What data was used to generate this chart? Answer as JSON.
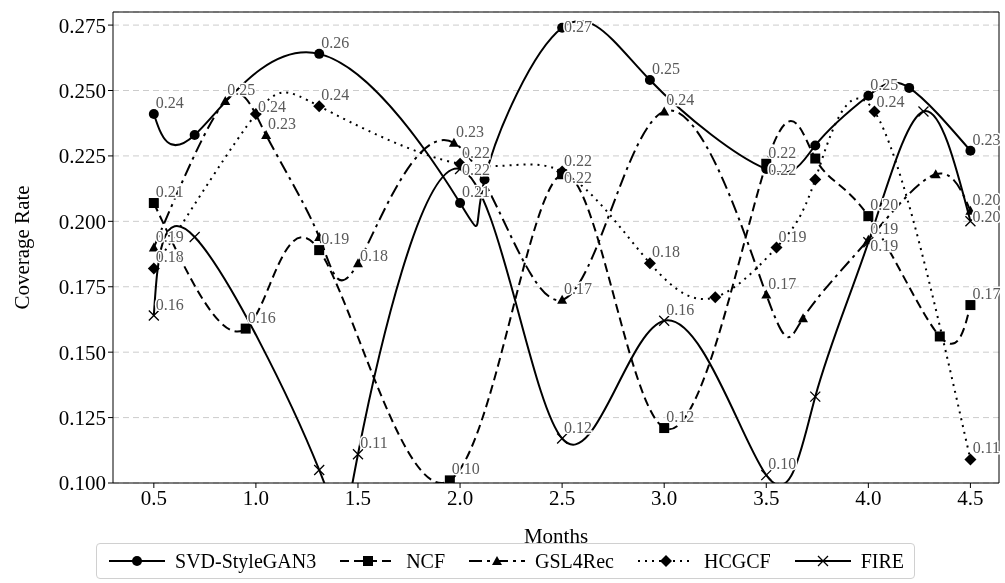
{
  "chart_data": {
    "type": "line",
    "xlabel": "Months",
    "ylabel": "Coverage Rate",
    "xlim": [
      0.3,
      4.64
    ],
    "xticks": [
      {
        "value": 0.5,
        "label": "0.5"
      },
      {
        "value": 1,
        "label": "1.0"
      },
      {
        "value": 1.5,
        "label": "1.5"
      },
      {
        "value": 2,
        "label": "2.0"
      },
      {
        "value": 2.5,
        "label": "2.5"
      },
      {
        "value": 3,
        "label": "3.0"
      },
      {
        "value": 3.5,
        "label": "3.5"
      },
      {
        "value": 4,
        "label": "4.0"
      },
      {
        "value": 4.5,
        "label": "4.5"
      }
    ],
    "ylim": [
      0.1,
      0.28
    ],
    "yticks": [
      {
        "value": 0.1,
        "label": "0.100"
      },
      {
        "value": 0.125,
        "label": "0.125"
      },
      {
        "value": 0.15,
        "label": "0.150"
      },
      {
        "value": 0.175,
        "label": "0.175"
      },
      {
        "value": 0.2,
        "label": "0.200"
      },
      {
        "value": 0.225,
        "label": "0.225"
      },
      {
        "value": 0.25,
        "label": "0.250"
      },
      {
        "value": 0.275,
        "label": "0.275"
      }
    ],
    "grid": "y",
    "legend": "bottom",
    "series": [
      {
        "name": "SVD-StyleGAN3",
        "color": "#000000",
        "line_style": "solid",
        "marker": "circle",
        "x": [
          0.5,
          0.7,
          1.31,
          2.0,
          2.12,
          2.5,
          2.93,
          3.5,
          3.74,
          4.0,
          4.2,
          4.5
        ],
        "values": [
          0.241,
          0.233,
          0.264,
          0.207,
          0.216,
          0.274,
          0.254,
          0.22,
          0.229,
          0.248,
          0.251,
          0.227
        ],
        "value_labels": [
          "0.24",
          null,
          "0.26",
          "0.21",
          null,
          "0.27",
          "0.25",
          "0.22",
          null,
          "0.25",
          null,
          "0.23"
        ]
      },
      {
        "name": "NCF",
        "color": "#000000",
        "line_style": "dashed",
        "marker": "square",
        "x": [
          0.5,
          0.95,
          1.31,
          1.95,
          2.5,
          3.0,
          3.5,
          3.74,
          4.0,
          4.35,
          4.5
        ],
        "values": [
          0.207,
          0.159,
          0.189,
          0.101,
          0.218,
          0.121,
          0.222,
          0.224,
          0.202,
          0.156,
          0.168
        ],
        "value_labels": [
          "0.21",
          "0.16",
          "0.19",
          "0.10",
          "0.22",
          "0.12",
          "0.22",
          null,
          "0.20",
          null,
          "0.17"
        ]
      },
      {
        "name": "GSL4Rec",
        "color": "#000000",
        "line_style": "dashdot",
        "marker": "triangle",
        "x": [
          0.5,
          0.85,
          1.05,
          1.31,
          1.5,
          1.97,
          2.5,
          3.0,
          3.5,
          3.68,
          4.0,
          4.33,
          4.5
        ],
        "values": [
          0.19,
          0.246,
          0.233,
          0.194,
          0.184,
          0.23,
          0.17,
          0.242,
          0.172,
          0.163,
          0.193,
          0.218,
          0.204
        ],
        "value_labels": [
          "0.19",
          "0.25",
          "0.23",
          null,
          "0.18",
          "0.23",
          "0.17",
          "0.24",
          "0.17",
          null,
          "0.19",
          null,
          "0.20"
        ]
      },
      {
        "name": "HCGCF",
        "color": "#000000",
        "line_style": "dotted",
        "marker": "diamond",
        "x": [
          0.5,
          1.0,
          1.31,
          2.0,
          2.5,
          2.93,
          3.25,
          3.55,
          3.74,
          4.03,
          4.5
        ],
        "values": [
          0.182,
          0.241,
          0.244,
          0.222,
          0.219,
          0.184,
          0.171,
          0.19,
          0.216,
          0.242,
          0.109
        ],
        "value_labels": [
          "0.18",
          "0.24",
          "0.24",
          "0.22",
          "0.22",
          "0.18",
          null,
          "0.19",
          null,
          "0.24",
          "0.11"
        ]
      },
      {
        "name": "FIRE",
        "color": "#000000",
        "line_style": "solid",
        "marker": "cross",
        "x": [
          0.5,
          0.7,
          1.31,
          1.5,
          2.0,
          2.5,
          3.0,
          3.5,
          3.74,
          4.0,
          4.27,
          4.5
        ],
        "values": [
          0.164,
          0.194,
          0.105,
          0.111,
          0.22,
          0.117,
          0.162,
          0.103,
          0.133,
          0.192,
          0.242,
          0.2
        ],
        "value_labels": [
          "0.16",
          null,
          null,
          "0.11",
          "0.22",
          "0.12",
          "0.16",
          "0.10",
          null,
          "0.19",
          null,
          "0.20"
        ]
      }
    ]
  }
}
